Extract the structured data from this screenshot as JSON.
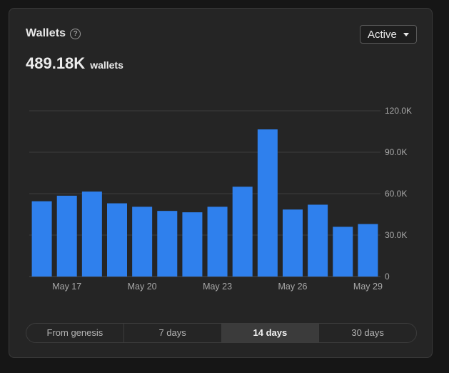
{
  "card": {
    "title": "Wallets",
    "help_icon": "question-circle-icon",
    "filter_dropdown": {
      "selected": "Active",
      "icon": "caret-down-icon"
    },
    "metric": {
      "value": "489.18K",
      "unit": "wallets"
    }
  },
  "colors": {
    "bar": "#2f80ed",
    "grid": "#3d3d3d",
    "axis_label": "#a8a8a8"
  },
  "chart_data": {
    "type": "bar",
    "categories": [
      "May 16",
      "May 17",
      "May 18",
      "May 19",
      "May 20",
      "May 21",
      "May 22",
      "May 23",
      "May 24",
      "May 25",
      "May 26",
      "May 27",
      "May 28",
      "May 29"
    ],
    "values": [
      54500,
      58500,
      61500,
      53000,
      50500,
      47500,
      46500,
      50500,
      65000,
      106500,
      48500,
      52000,
      36000,
      38000
    ],
    "x_tick_labels": [
      "May 17",
      "May 20",
      "May 23",
      "May 26",
      "May 29"
    ],
    "y_ticks": [
      {
        "value": 0,
        "label": "0"
      },
      {
        "value": 30000,
        "label": "30.0K"
      },
      {
        "value": 60000,
        "label": "60.0K"
      },
      {
        "value": 90000,
        "label": "90.0K"
      },
      {
        "value": 120000,
        "label": "120.0K"
      }
    ],
    "ylim": [
      0,
      120000
    ],
    "y_axis_position": "right",
    "grid": true,
    "legend": "none"
  },
  "time_range_tabs": {
    "items": [
      {
        "label": "From genesis",
        "active": false
      },
      {
        "label": "7 days",
        "active": false
      },
      {
        "label": "14 days",
        "active": true
      },
      {
        "label": "30 days",
        "active": false
      }
    ]
  }
}
